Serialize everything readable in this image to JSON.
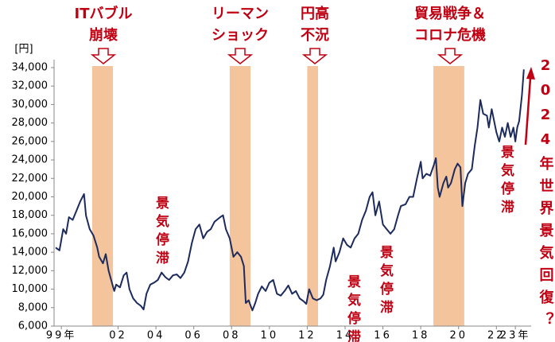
{
  "chart_data": {
    "type": "line",
    "y_unit": "[円]",
    "color": "#1c2b5e",
    "shade_color": "#f4c49c",
    "x": [
      1998.7,
      1998.9,
      1999.1,
      1999.25,
      1999.4,
      1999.6,
      1999.8,
      2000.0,
      2000.2,
      2000.3,
      2000.5,
      2000.7,
      2000.9,
      2001.0,
      2001.2,
      2001.35,
      2001.5,
      2001.7,
      2001.8,
      2001.9,
      2002.1,
      2002.3,
      2002.45,
      2002.6,
      2002.8,
      2003.0,
      2003.2,
      2003.35,
      2003.5,
      2003.7,
      2003.9,
      2004.1,
      2004.3,
      2004.5,
      2004.7,
      2004.9,
      2005.1,
      2005.3,
      2005.5,
      2005.7,
      2005.9,
      2006.1,
      2006.3,
      2006.5,
      2006.7,
      2006.9,
      2007.1,
      2007.4,
      2007.55,
      2007.7,
      2007.9,
      2008.1,
      2008.3,
      2008.5,
      2008.65,
      2008.75,
      2008.9,
      2009.1,
      2009.25,
      2009.4,
      2009.6,
      2009.8,
      2010.0,
      2010.2,
      2010.4,
      2010.6,
      2010.8,
      2011.0,
      2011.2,
      2011.4,
      2011.6,
      2011.8,
      2011.95,
      2012.1,
      2012.3,
      2012.5,
      2012.7,
      2012.85,
      2013.0,
      2013.2,
      2013.4,
      2013.5,
      2013.7,
      2013.9,
      2014.1,
      2014.3,
      2014.5,
      2014.7,
      2014.9,
      2015.1,
      2015.3,
      2015.45,
      2015.6,
      2015.8,
      2016.0,
      2016.2,
      2016.4,
      2016.6,
      2016.8,
      2016.95,
      2017.2,
      2017.4,
      2017.6,
      2017.8,
      2018.0,
      2018.1,
      2018.3,
      2018.5,
      2018.7,
      2018.8,
      2018.9,
      2019.0,
      2019.2,
      2019.35,
      2019.45,
      2019.6,
      2019.8,
      2019.95,
      2020.1,
      2020.2,
      2020.35,
      2020.5,
      2020.7,
      2020.85,
      2021.0,
      2021.15,
      2021.3,
      2021.5,
      2021.6,
      2021.75,
      2021.9,
      2022.0,
      2022.15,
      2022.3,
      2022.45,
      2022.6,
      2022.75,
      2022.9,
      2023.0,
      2023.1,
      2023.2,
      2023.35,
      2023.45
    ],
    "values": [
      14500,
      14200,
      16500,
      16000,
      17800,
      17500,
      18500,
      19500,
      20300,
      18000,
      16500,
      15800,
      14500,
      13500,
      12800,
      13800,
      12000,
      10500,
      9800,
      10500,
      10200,
      11500,
      11800,
      10000,
      9000,
      8500,
      8200,
      7800,
      9500,
      10500,
      10700,
      11000,
      11800,
      11300,
      11000,
      11500,
      11600,
      11200,
      11800,
      13000,
      15000,
      16500,
      17000,
      15500,
      16200,
      16500,
      17300,
      17800,
      18000,
      16500,
      15500,
      13500,
      14000,
      13500,
      12500,
      8500,
      8800,
      7700,
      8500,
      9500,
      10300,
      9800,
      10700,
      11000,
      9500,
      9300,
      9800,
      10400,
      9500,
      9800,
      9000,
      8700,
      8400,
      10000,
      9000,
      8800,
      9000,
      9400,
      11000,
      12500,
      14500,
      13000,
      14000,
      15500,
      14800,
      14500,
      15500,
      16000,
      17500,
      18500,
      20000,
      20500,
      18000,
      19500,
      17000,
      16500,
      16000,
      16500,
      18000,
      19000,
      19200,
      20000,
      20000,
      22000,
      23800,
      22000,
      22500,
      22300,
      23500,
      24200,
      21000,
      20000,
      21500,
      22200,
      21000,
      21500,
      23000,
      23600,
      23200,
      19000,
      21500,
      22500,
      23000,
      25500,
      27500,
      30500,
      29000,
      28800,
      27500,
      29500,
      28000,
      27000,
      26000,
      27500,
      26500,
      28000,
      26500,
      27500,
      26000,
      27500,
      28200,
      31000,
      33800
    ],
    "xlim": [
      1998.7,
      2023.5
    ],
    "ylim": [
      6000,
      34000
    ],
    "yticks": [
      {
        "value": 6000,
        "label": "6,000"
      },
      {
        "value": 8000,
        "label": "8,000"
      },
      {
        "value": 10000,
        "label": "10,000"
      },
      {
        "value": 12000,
        "label": "12,000"
      },
      {
        "value": 14000,
        "label": "14,000"
      },
      {
        "value": 16000,
        "label": "16,000"
      },
      {
        "value": 18000,
        "label": "18,000"
      },
      {
        "value": 20000,
        "label": "20,000"
      },
      {
        "value": 22000,
        "label": "22,000"
      },
      {
        "value": 24000,
        "label": "24,000"
      },
      {
        "value": 26000,
        "label": "26,000"
      },
      {
        "value": 28000,
        "label": "28,000"
      },
      {
        "value": 30000,
        "label": "30,000"
      },
      {
        "value": 32000,
        "label": "32,000"
      },
      {
        "value": 34000,
        "label": "34,000"
      }
    ],
    "xticks": [
      {
        "value": 1999,
        "label": "99年"
      },
      {
        "value": 2002,
        "label": "02"
      },
      {
        "value": 2004,
        "label": "04"
      },
      {
        "value": 2006,
        "label": "06"
      },
      {
        "value": 2008,
        "label": "08"
      },
      {
        "value": 2010,
        "label": "10"
      },
      {
        "value": 2012,
        "label": "12"
      },
      {
        "value": 2014,
        "label": "14"
      },
      {
        "value": 2016,
        "label": "16"
      },
      {
        "value": 2018,
        "label": "18"
      },
      {
        "value": 2020,
        "label": "20"
      },
      {
        "value": 2022,
        "label": "22"
      },
      {
        "value": 2023,
        "label": "23年"
      }
    ],
    "shaded_ranges": [
      [
        2000.63,
        2001.73
      ],
      [
        2007.9,
        2009.0
      ],
      [
        2012.0,
        2012.57
      ],
      [
        2018.67,
        2020.3
      ]
    ],
    "event_labels": [
      [
        "ITバブル",
        "崩壊"
      ],
      [
        "リーマン",
        "ショック"
      ],
      [
        "円高",
        "不況"
      ],
      [
        "貿易戦争＆",
        "コロナ危機"
      ]
    ],
    "stagnation_labels": [
      "景気停滞",
      "景気停滞",
      "景気停滞",
      "景気停滞"
    ],
    "outlook_label": "2024年世界景気回復？"
  }
}
